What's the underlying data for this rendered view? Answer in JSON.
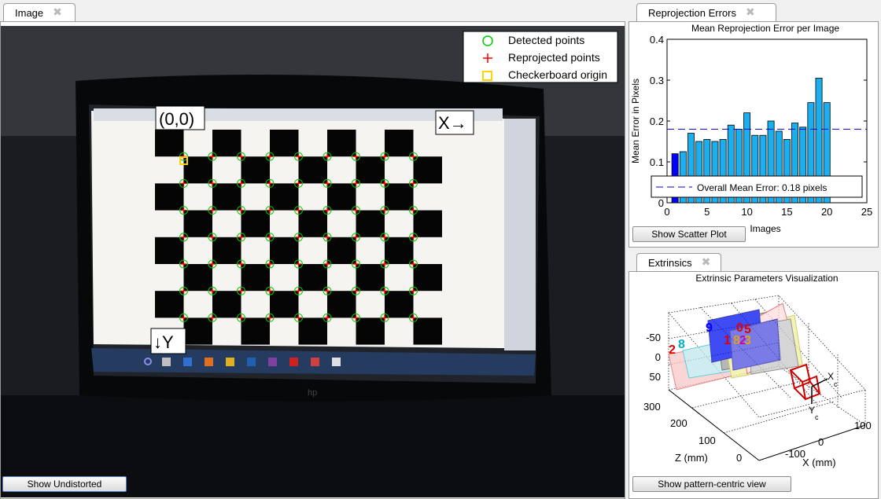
{
  "image_tab": {
    "label": "Image"
  },
  "image_legend": {
    "detected": "Detected points",
    "reprojected": "Reprojected points",
    "origin": "Checkerboard origin"
  },
  "image_labels": {
    "origin": "(0,0)",
    "x_axis": "X→",
    "y_axis": "↓Y"
  },
  "image_button": "Show Undistorted",
  "reproj_tab": {
    "label": "Reprojection Errors"
  },
  "reproj_button": "Show Scatter Plot",
  "extr_tab": {
    "label": "Extrinsics"
  },
  "extr_button": "Show pattern-centric view",
  "colors": {
    "detected": "#00cc00",
    "reprojected": "#ff0000",
    "origin": "#ffd400",
    "bar": "#1ab0f0",
    "selected_bar": "#0000ff",
    "mean_line": "#0000cc"
  },
  "chart_data": [
    {
      "type": "bar",
      "title": "Mean Reprojection Error per Image",
      "xlabel": "Images",
      "ylabel": "Mean Error in Pixels",
      "x": [
        1,
        2,
        3,
        4,
        5,
        6,
        7,
        8,
        9,
        10,
        11,
        12,
        13,
        14,
        15,
        16,
        17,
        18,
        19,
        20
      ],
      "values": [
        0.12,
        0.125,
        0.17,
        0.15,
        0.155,
        0.15,
        0.155,
        0.19,
        0.18,
        0.22,
        0.165,
        0.165,
        0.2,
        0.175,
        0.155,
        0.195,
        0.185,
        0.245,
        0.305,
        0.245
      ],
      "selected_index": 0,
      "xlim": [
        0,
        25
      ],
      "ylim": [
        0,
        0.4
      ],
      "xticks": [
        "0",
        "5",
        "10",
        "15",
        "20",
        "25"
      ],
      "yticks": [
        "0",
        "0.1",
        "0.2",
        "0.3",
        "0.4"
      ],
      "mean_line": {
        "value": 0.18,
        "label": "Overall Mean Error: 0.18 pixels"
      }
    },
    {
      "type": "3d-scatter",
      "title": "Extrinsic Parameters Visualization",
      "xlabel": "X (mm)",
      "zlabel": "Z (mm)",
      "y_ticks": [
        "-50",
        "0",
        "50"
      ],
      "z_ticks": [
        "300",
        "200",
        "100",
        "0"
      ],
      "x_ticks": [
        "100",
        "0",
        "-100"
      ],
      "camera_axes": [
        "X",
        "Y"
      ],
      "camera_axis_subscript": "c",
      "plane_labels": [
        "2",
        "8",
        "9",
        "1",
        "8",
        "2",
        "0",
        "3",
        "5"
      ]
    }
  ]
}
